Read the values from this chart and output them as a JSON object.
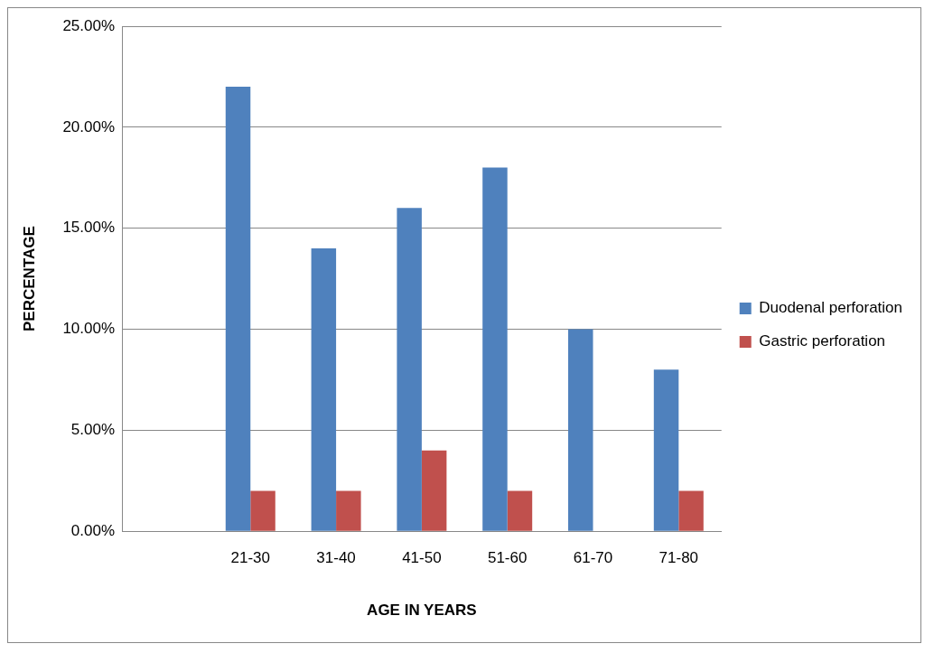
{
  "chart_data": {
    "type": "bar",
    "xlabel": "AGE IN YEARS",
    "ylabel": "PERCENTAGE",
    "categories": [
      null,
      "21-30",
      "31-40",
      "41-50",
      "51-60",
      "61-70",
      "71-80"
    ],
    "series": [
      {
        "name": "Duodenal perforation",
        "color": "#4f81bd",
        "values": [
          null,
          22,
          14,
          16,
          18,
          10,
          8
        ]
      },
      {
        "name": "Gastric perforation",
        "color": "#c0504d",
        "values": [
          null,
          2,
          2,
          4,
          2,
          null,
          2
        ]
      }
    ],
    "ylim": [
      0,
      25
    ],
    "yticks": [
      {
        "value": 0,
        "label": "0.00%"
      },
      {
        "value": 5,
        "label": "5.00%"
      },
      {
        "value": 10,
        "label": "10.00%"
      },
      {
        "value": 15,
        "label": "15.00%"
      },
      {
        "value": 20,
        "label": "20.00%"
      },
      {
        "value": 25,
        "label": "25.00%"
      }
    ],
    "grid": "y",
    "legend": "right"
  }
}
